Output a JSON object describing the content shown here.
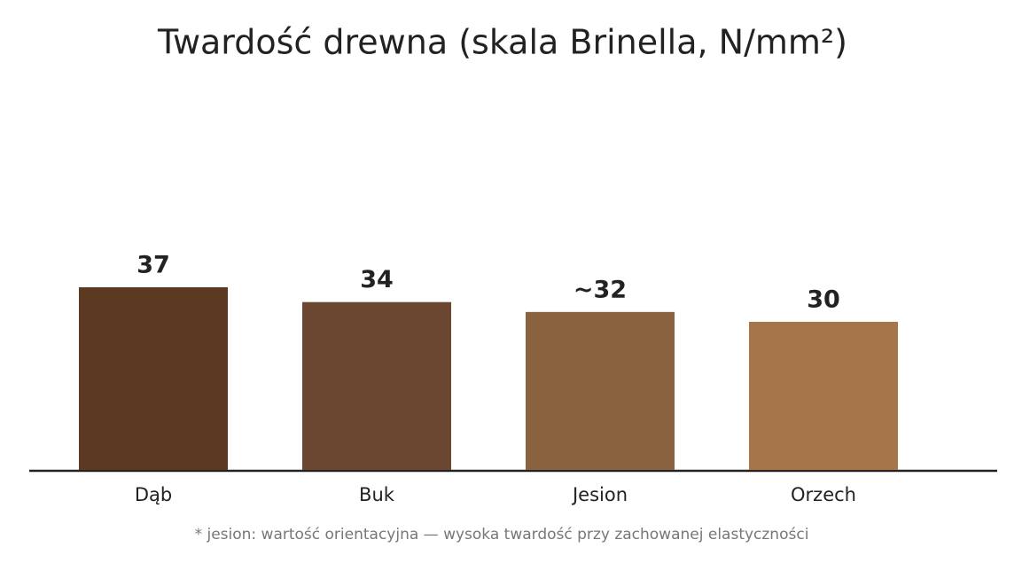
{
  "chart_data": {
    "type": "bar",
    "title": "Twardość drewna (skala Brinella, N/mm²)",
    "categories": [
      "Dąb",
      "Buk",
      "Jesion",
      "Orzech"
    ],
    "values": [
      37,
      34,
      32,
      30
    ],
    "value_labels": [
      "37",
      "34",
      "~32",
      "30"
    ],
    "colors": [
      "#5c3a21",
      "#6b4631",
      "#8a6240",
      "#a6754a"
    ],
    "note": "* jesion: wartość orientacyjna — wysoka twardość przy zachowanej elastyczności"
  }
}
